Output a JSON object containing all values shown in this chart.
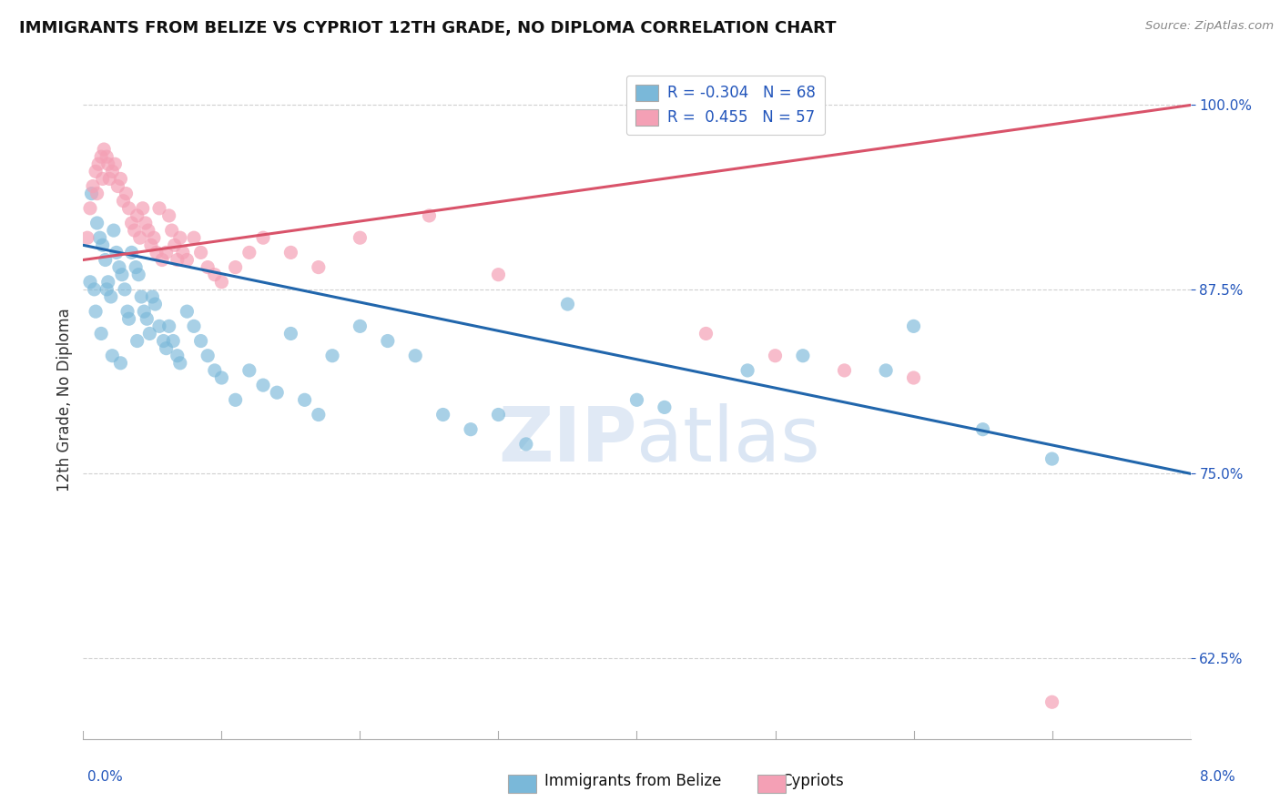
{
  "title": "IMMIGRANTS FROM BELIZE VS CYPRIOT 12TH GRADE, NO DIPLOMA CORRELATION CHART",
  "source_text": "Source: ZipAtlas.com",
  "ylabel": "12th Grade, No Diploma",
  "xmin": 0.0,
  "xmax": 8.0,
  "ymin": 57.0,
  "ymax": 103.0,
  "yticks": [
    62.5,
    75.0,
    87.5,
    100.0
  ],
  "watermark": "ZIPatlas",
  "legend_blue_label": "Immigrants from Belize",
  "legend_pink_label": "Cypriots",
  "R_blue": -0.304,
  "N_blue": 68,
  "R_pink": 0.455,
  "N_pink": 57,
  "blue_color": "#7ab8d9",
  "pink_color": "#f4a0b5",
  "blue_line_color": "#2166ac",
  "pink_line_color": "#d9536a",
  "blue_line_x0": 0.0,
  "blue_line_y0": 90.5,
  "blue_line_x1": 8.0,
  "blue_line_y1": 75.0,
  "pink_line_x0": 0.0,
  "pink_line_y0": 89.5,
  "pink_line_x1": 8.0,
  "pink_line_y1": 100.0,
  "belize_x": [
    0.05,
    0.08,
    0.1,
    0.12,
    0.14,
    0.16,
    0.18,
    0.2,
    0.22,
    0.24,
    0.26,
    0.28,
    0.3,
    0.32,
    0.35,
    0.38,
    0.4,
    0.42,
    0.44,
    0.46,
    0.48,
    0.5,
    0.52,
    0.55,
    0.58,
    0.6,
    0.62,
    0.65,
    0.68,
    0.7,
    0.75,
    0.8,
    0.85,
    0.9,
    0.95,
    1.0,
    1.1,
    1.2,
    1.3,
    1.4,
    1.5,
    1.6,
    1.7,
    1.8,
    2.0,
    2.2,
    2.4,
    2.6,
    2.8,
    3.0,
    3.2,
    3.5,
    4.0,
    4.2,
    4.8,
    5.2,
    5.8,
    6.0,
    6.5,
    7.0,
    0.06,
    0.09,
    0.13,
    0.17,
    0.21,
    0.27,
    0.33,
    0.39
  ],
  "belize_y": [
    88.0,
    87.5,
    92.0,
    91.0,
    90.5,
    89.5,
    88.0,
    87.0,
    91.5,
    90.0,
    89.0,
    88.5,
    87.5,
    86.0,
    90.0,
    89.0,
    88.5,
    87.0,
    86.0,
    85.5,
    84.5,
    87.0,
    86.5,
    85.0,
    84.0,
    83.5,
    85.0,
    84.0,
    83.0,
    82.5,
    86.0,
    85.0,
    84.0,
    83.0,
    82.0,
    81.5,
    80.0,
    82.0,
    81.0,
    80.5,
    84.5,
    80.0,
    79.0,
    83.0,
    85.0,
    84.0,
    83.0,
    79.0,
    78.0,
    79.0,
    77.0,
    86.5,
    80.0,
    79.5,
    82.0,
    83.0,
    82.0,
    85.0,
    78.0,
    76.0,
    94.0,
    86.0,
    84.5,
    87.5,
    83.0,
    82.5,
    85.5,
    84.0
  ],
  "cypriot_x": [
    0.03,
    0.05,
    0.07,
    0.09,
    0.11,
    0.13,
    0.15,
    0.17,
    0.19,
    0.21,
    0.23,
    0.25,
    0.27,
    0.29,
    0.31,
    0.33,
    0.35,
    0.37,
    0.39,
    0.41,
    0.43,
    0.45,
    0.47,
    0.49,
    0.51,
    0.53,
    0.55,
    0.57,
    0.6,
    0.62,
    0.64,
    0.66,
    0.68,
    0.7,
    0.72,
    0.75,
    0.8,
    0.85,
    0.9,
    0.95,
    1.0,
    1.1,
    1.2,
    1.3,
    1.5,
    1.7,
    2.0,
    2.5,
    3.0,
    4.5,
    5.0,
    5.5,
    6.0,
    7.0,
    0.1,
    0.14,
    0.18
  ],
  "cypriot_y": [
    91.0,
    93.0,
    94.5,
    95.5,
    96.0,
    96.5,
    97.0,
    96.5,
    95.0,
    95.5,
    96.0,
    94.5,
    95.0,
    93.5,
    94.0,
    93.0,
    92.0,
    91.5,
    92.5,
    91.0,
    93.0,
    92.0,
    91.5,
    90.5,
    91.0,
    90.0,
    93.0,
    89.5,
    90.0,
    92.5,
    91.5,
    90.5,
    89.5,
    91.0,
    90.0,
    89.5,
    91.0,
    90.0,
    89.0,
    88.5,
    88.0,
    89.0,
    90.0,
    91.0,
    90.0,
    89.0,
    91.0,
    92.5,
    88.5,
    84.5,
    83.0,
    82.0,
    81.5,
    59.5,
    94.0,
    95.0,
    96.0
  ]
}
